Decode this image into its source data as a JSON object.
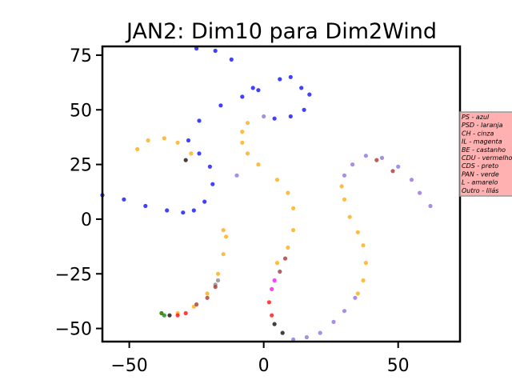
{
  "chart_data": {
    "type": "scatter",
    "title": "JAN2: Dim10 para Dim2Wind",
    "xlabel": "",
    "ylabel": "",
    "xlim": [
      -60,
      73
    ],
    "ylim": [
      -56,
      79
    ],
    "xticks": [
      -50,
      0,
      50
    ],
    "yticks": [
      75,
      50,
      25,
      0,
      -25,
      -50
    ],
    "xtick_labels": [
      "−50",
      "0",
      "50"
    ],
    "ytick_labels": [
      "75",
      "50",
      "25",
      "0",
      "−25",
      "−50"
    ],
    "grid": false,
    "legend_position": "right",
    "legend": {
      "background": "#ffb0b0",
      "entries": [
        "PS - azul",
        "PSD - laranja",
        "CH - cinza",
        "IL - magenta",
        "BE - castanho",
        "CDU - vermelho",
        "CDS - preto",
        "PAN - verde",
        "L - amarelo",
        "Outro - lilás"
      ]
    },
    "colors": {
      "PS": "#0000ff",
      "PSD": "#ffa500",
      "CH": "#808080",
      "IL": "#ff00ff",
      "BE": "#a52a2a",
      "CDU": "#ff0000",
      "CDS": "#000000",
      "PAN": "#008000",
      "L": "#ffff00",
      "Outro": "#c8a2c8"
    },
    "series": [
      {
        "party": "PS",
        "color": "#0000ff",
        "points": [
          [
            -60,
            11
          ],
          [
            -52,
            9
          ],
          [
            -44,
            6
          ],
          [
            -36,
            4
          ],
          [
            -30,
            3
          ],
          [
            -26,
            4
          ],
          [
            -22,
            8
          ],
          [
            -19,
            16
          ],
          [
            -20,
            24
          ],
          [
            -24,
            30
          ],
          [
            -28,
            36
          ],
          [
            -24,
            45
          ],
          [
            -16,
            52
          ],
          [
            -8,
            56
          ],
          [
            -2,
            59
          ],
          [
            6,
            64
          ],
          [
            10,
            65
          ],
          [
            14,
            60
          ],
          [
            17,
            57
          ],
          [
            15,
            50
          ],
          [
            10,
            47
          ],
          [
            4,
            46
          ],
          [
            -4,
            60
          ],
          [
            -12,
            73
          ],
          [
            -18,
            77
          ],
          [
            -25,
            78
          ]
        ]
      },
      {
        "party": "PSD",
        "color": "#ffa500",
        "points": [
          [
            -47,
            32
          ],
          [
            -43,
            36
          ],
          [
            -37,
            37
          ],
          [
            -32,
            35
          ],
          [
            -27,
            30
          ],
          [
            -6,
            44
          ],
          [
            -8,
            40
          ],
          [
            -8,
            35
          ],
          [
            -6,
            30
          ],
          [
            -2,
            25
          ],
          [
            5,
            18
          ],
          [
            9,
            12
          ],
          [
            11,
            5
          ],
          [
            11,
            -5
          ],
          [
            9,
            -13
          ],
          [
            5,
            -20
          ],
          [
            -38,
            -43
          ],
          [
            -32,
            -43
          ],
          [
            -26,
            -40
          ],
          [
            -21,
            -34
          ],
          [
            -17,
            -25
          ],
          [
            -15,
            -16
          ],
          [
            -14,
            -8
          ],
          [
            -15,
            -5
          ],
          [
            29,
            15
          ],
          [
            30,
            9
          ],
          [
            32,
            1
          ],
          [
            35,
            -6
          ],
          [
            37,
            -12
          ],
          [
            38,
            -20
          ],
          [
            37,
            -28
          ],
          [
            35,
            -34
          ]
        ]
      },
      {
        "party": "CH",
        "color": "#808080",
        "points": [
          [
            -17,
            -28
          ],
          [
            -18,
            -30
          ]
        ]
      },
      {
        "party": "IL",
        "color": "#ff00ff",
        "points": [
          [
            3,
            -32
          ],
          [
            4,
            -28
          ]
        ]
      },
      {
        "party": "BE",
        "color": "#a52a2a",
        "points": [
          [
            -25,
            -39
          ],
          [
            -21,
            -36
          ],
          [
            -18,
            -31
          ],
          [
            6,
            -24
          ],
          [
            8,
            -18
          ],
          [
            42,
            27
          ],
          [
            48,
            22
          ]
        ]
      },
      {
        "party": "CDU",
        "color": "#ff0000",
        "points": [
          [
            -32,
            -44
          ],
          [
            -29,
            -43
          ],
          [
            2,
            -38
          ],
          [
            3,
            -44
          ]
        ]
      },
      {
        "party": "CDS",
        "color": "#000000",
        "points": [
          [
            -35,
            -44
          ],
          [
            4,
            -48
          ],
          [
            7,
            -52
          ],
          [
            -29,
            27
          ]
        ]
      },
      {
        "party": "PAN",
        "color": "#008000",
        "points": [
          [
            -38,
            -43
          ],
          [
            -37,
            -44
          ]
        ]
      },
      {
        "party": "Outro",
        "color": "#8a6adb",
        "points": [
          [
            38,
            29
          ],
          [
            44,
            28
          ],
          [
            50,
            24
          ],
          [
            55,
            18
          ],
          [
            58,
            12
          ],
          [
            62,
            6
          ],
          [
            33,
            25
          ],
          [
            30,
            20
          ],
          [
            34,
            -36
          ],
          [
            30,
            -42
          ],
          [
            26,
            -47
          ],
          [
            21,
            -52
          ],
          [
            16,
            -54
          ],
          [
            11,
            -55
          ],
          [
            0,
            47
          ],
          [
            -10,
            20
          ]
        ]
      }
    ]
  }
}
